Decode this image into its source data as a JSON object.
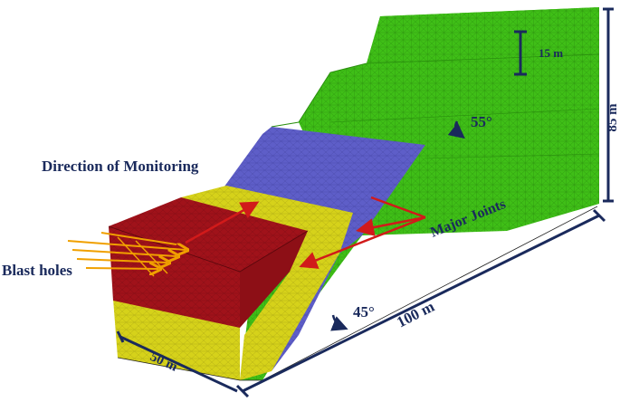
{
  "labels": {
    "direction_of_monitoring": "Direction of Monitoring",
    "blast_holes": "Blast holes",
    "major_joints": "Major Joints",
    "bench_height": "15 m",
    "total_height": "85 m",
    "length": "100 m",
    "width": "50 m",
    "upper_slope_angle": "55°",
    "lower_slope_angle": "45°"
  },
  "colors": {
    "green_mesh": "#3fbf17",
    "blue_layer": "#5e5ec8",
    "yellow_layer": "#d6d21a",
    "red_block": "#a0121a",
    "arrow_red": "#d11a1a",
    "blast_arrow": "#f0a000",
    "dimension_line": "#1a2a5c"
  }
}
